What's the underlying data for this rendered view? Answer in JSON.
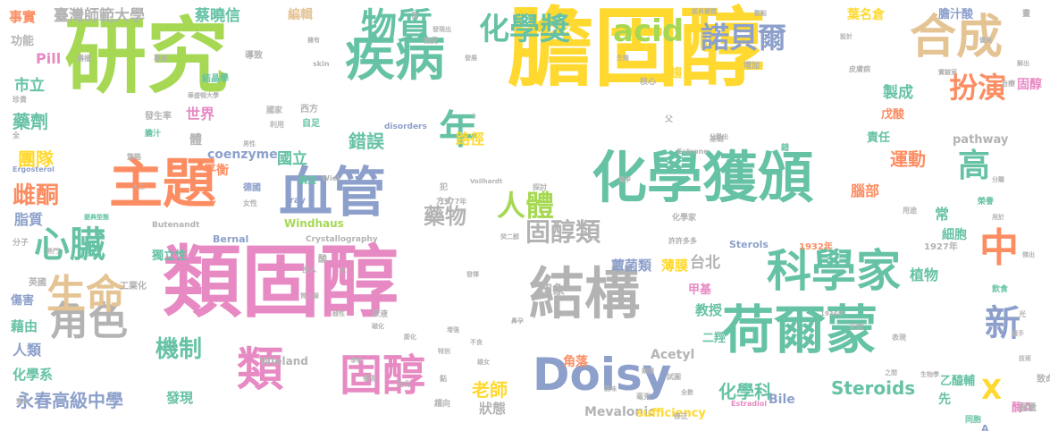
{
  "palette": {
    "green": "#a6d854",
    "gold": "#ffd92f",
    "pink": "#e78ac3",
    "orange": "#fc8d62",
    "teal": "#66c2a5",
    "blue": "#8da0cb",
    "tan": "#e5c494",
    "gray": "#b3b3b3"
  },
  "words": [
    {
      "text": "膽固醇",
      "size": 96,
      "color": "gold"
    },
    {
      "text": "研究",
      "size": 92,
      "color": "green"
    },
    {
      "text": "類固醇",
      "size": 88,
      "color": "pink"
    },
    {
      "text": "化學獲頒",
      "size": 62,
      "color": "teal"
    },
    {
      "text": "主題",
      "size": 60,
      "color": "orange"
    },
    {
      "text": "血管",
      "size": 60,
      "color": "blue"
    },
    {
      "text": "疾病",
      "size": 56,
      "color": "teal"
    },
    {
      "text": "結構",
      "size": 62,
      "color": "gray"
    },
    {
      "text": "荷爾蒙",
      "size": 58,
      "color": "teal"
    },
    {
      "text": "科學家",
      "size": 50,
      "color": "teal"
    },
    {
      "text": "Doisy",
      "size": 50,
      "color": "blue"
    },
    {
      "text": "類",
      "size": 52,
      "color": "pink"
    },
    {
      "text": "固醇",
      "size": 48,
      "color": "pink"
    },
    {
      "text": "合成",
      "size": 52,
      "color": "tan"
    },
    {
      "text": "年",
      "size": 44,
      "color": "teal"
    },
    {
      "text": "角色",
      "size": 44,
      "color": "gray"
    },
    {
      "text": "生命",
      "size": 44,
      "color": "tan"
    },
    {
      "text": "心臟",
      "size": 40,
      "color": "teal"
    },
    {
      "text": "物質",
      "size": 40,
      "color": "teal"
    },
    {
      "text": "化學獎",
      "size": 34,
      "color": "teal"
    },
    {
      "text": "acid",
      "size": 34,
      "color": "green"
    },
    {
      "text": "諾貝爾",
      "size": 32,
      "color": "blue"
    },
    {
      "text": "扮演",
      "size": 32,
      "color": "orange"
    },
    {
      "text": "高",
      "size": 36,
      "color": "teal"
    },
    {
      "text": "中",
      "size": 44,
      "color": "orange"
    },
    {
      "text": "新",
      "size": 40,
      "color": "blue"
    },
    {
      "text": "人體",
      "size": 32,
      "color": "green"
    },
    {
      "text": "固醇類",
      "size": 28,
      "color": "gray"
    },
    {
      "text": "雌酮",
      "size": 26,
      "color": "orange"
    },
    {
      "text": "機制",
      "size": 26,
      "color": "teal"
    },
    {
      "text": "藥物",
      "size": 24,
      "color": "gray"
    },
    {
      "text": "錯誤",
      "size": 20,
      "color": "teal"
    },
    {
      "text": "運動",
      "size": 20,
      "color": "orange"
    },
    {
      "text": "團隊",
      "size": 20,
      "color": "gold"
    },
    {
      "text": "藥劑",
      "size": 20,
      "color": "teal"
    },
    {
      "text": "X",
      "size": 30,
      "color": "gold"
    },
    {
      "text": "Steroids",
      "size": 20,
      "color": "teal"
    },
    {
      "text": "永春高級中學",
      "size": 20,
      "color": "blue"
    },
    {
      "text": "化學科",
      "size": 20,
      "color": "teal"
    },
    {
      "text": "老師",
      "size": 20,
      "color": "gold"
    },
    {
      "text": "臺灣師範大學",
      "size": 17,
      "color": "gray"
    },
    {
      "text": "蔡曉信",
      "size": 17,
      "color": "teal"
    },
    {
      "text": "編輯",
      "size": 14,
      "color": "tan"
    },
    {
      "text": "葉名倉",
      "size": 14,
      "color": "gold"
    },
    {
      "text": "膽汁酸",
      "size": 13,
      "color": "blue"
    },
    {
      "text": "事實",
      "size": 15,
      "color": "orange"
    },
    {
      "text": "功能",
      "size": 13,
      "color": "gray"
    },
    {
      "text": "Pill",
      "size": 16,
      "color": "pink"
    },
    {
      "text": "市立",
      "size": 17,
      "color": "teal"
    },
    {
      "text": "世界",
      "size": 16,
      "color": "pink"
    },
    {
      "text": "體",
      "size": 14,
      "color": "gray"
    },
    {
      "text": "路徑",
      "size": 16,
      "color": "gold"
    },
    {
      "text": "國立",
      "size": 17,
      "color": "teal"
    },
    {
      "text": "平衡",
      "size": 14,
      "color": "orange"
    },
    {
      "text": "coenzyme",
      "size": 14,
      "color": "blue"
    },
    {
      "text": "製成",
      "size": 17,
      "color": "teal"
    },
    {
      "text": "戊酸",
      "size": 13,
      "color": "orange"
    },
    {
      "text": "責任",
      "size": 13,
      "color": "teal"
    },
    {
      "text": "pathway",
      "size": 13,
      "color": "gray"
    },
    {
      "text": "脂質",
      "size": 16,
      "color": "blue"
    },
    {
      "text": "腦部",
      "size": 16,
      "color": "orange"
    },
    {
      "text": "常",
      "size": 16,
      "color": "teal"
    },
    {
      "text": "細胞",
      "size": 14,
      "color": "teal"
    },
    {
      "text": "台北",
      "size": 17,
      "color": "gray"
    },
    {
      "text": "印象",
      "size": 14,
      "color": "gray"
    },
    {
      "text": "蕈菌類",
      "size": 15,
      "color": "blue"
    },
    {
      "text": "薄膜",
      "size": 15,
      "color": "gold"
    },
    {
      "text": "甲基",
      "size": 13,
      "color": "pink"
    },
    {
      "text": "植物",
      "size": 16,
      "color": "teal"
    },
    {
      "text": "教授",
      "size": 15,
      "color": "teal"
    },
    {
      "text": "二羥",
      "size": 13,
      "color": "teal"
    },
    {
      "text": "固醇",
      "size": 14,
      "color": "pink"
    },
    {
      "text": "傷害",
      "size": 13,
      "color": "blue"
    },
    {
      "text": "藉由",
      "size": 15,
      "color": "teal"
    },
    {
      "text": "人類",
      "size": 16,
      "color": "blue"
    },
    {
      "text": "化學系",
      "size": 15,
      "color": "teal"
    },
    {
      "text": "發現",
      "size": 15,
      "color": "teal"
    },
    {
      "text": "狀態",
      "size": 15,
      "color": "gray"
    },
    {
      "text": "Bile",
      "size": 14,
      "color": "blue"
    },
    {
      "text": "Mevalonic",
      "size": 14,
      "color": "gray"
    },
    {
      "text": "sufficiency",
      "size": 13,
      "color": "gold"
    },
    {
      "text": "Acetyl",
      "size": 14,
      "color": "gray"
    },
    {
      "text": "角落",
      "size": 14,
      "color": "orange"
    },
    {
      "text": "先",
      "size": 14,
      "color": "teal"
    },
    {
      "text": "乙醯輔",
      "size": 13,
      "color": "teal"
    },
    {
      "text": "酶A",
      "size": 13,
      "color": "pink"
    },
    {
      "text": "獨立性",
      "size": 13,
      "color": "teal"
    },
    {
      "text": "Windhaus",
      "size": 12,
      "color": "green"
    },
    {
      "text": "Wieland",
      "size": 12,
      "color": "gray"
    },
    {
      "text": "Sterols",
      "size": 11,
      "color": "blue"
    },
    {
      "text": "Bernal",
      "size": 11,
      "color": "blue"
    },
    {
      "text": "Butenandt",
      "size": 9,
      "color": "gray"
    },
    {
      "text": "Crystallography",
      "size": 9,
      "color": "gray"
    },
    {
      "text": "1932年",
      "size": 10,
      "color": "orange"
    },
    {
      "text": "1927年",
      "size": 10,
      "color": "gray"
    },
    {
      "text": "1977年",
      "size": 8,
      "color": "gray"
    },
    {
      "text": "1936年",
      "size": 7,
      "color": "gray"
    },
    {
      "text": "disorders",
      "size": 9,
      "color": "blue"
    },
    {
      "text": "Estrone",
      "size": 8,
      "color": "gray"
    },
    {
      "text": "Estradiol",
      "size": 8,
      "color": "pink"
    },
    {
      "text": "Ergosterol",
      "size": 8,
      "color": "blue"
    },
    {
      "text": "ray",
      "size": 10,
      "color": "blue"
    },
    {
      "text": "skin",
      "size": 8,
      "color": "gray"
    },
    {
      "text": "Vollhardt",
      "size": 7,
      "color": "gray"
    },
    {
      "text": "Wiel",
      "size": 8,
      "color": "gray"
    },
    {
      "text": "A",
      "size": 11,
      "color": "blue"
    },
    {
      "text": "過量",
      "size": 10,
      "color": "gray"
    },
    {
      "text": "致命",
      "size": 10,
      "color": "gray"
    },
    {
      "text": "專家",
      "size": 8,
      "color": "gray"
    },
    {
      "text": "結晶學",
      "size": 10,
      "color": "teal"
    },
    {
      "text": "導致",
      "size": 10,
      "color": "gray"
    },
    {
      "text": "華盛頓大學",
      "size": 7,
      "color": "gray"
    },
    {
      "text": "傳播",
      "size": 8,
      "color": "gray"
    },
    {
      "text": "珍貴",
      "size": 8,
      "color": "gray"
    },
    {
      "text": "發生率",
      "size": 10,
      "color": "gray"
    },
    {
      "text": "膽汁",
      "size": 9,
      "color": "teal"
    },
    {
      "text": "策略",
      "size": 8,
      "color": "gray"
    },
    {
      "text": "男性",
      "size": 7,
      "color": "gray"
    },
    {
      "text": "國家",
      "size": 9,
      "color": "gray"
    },
    {
      "text": "利用",
      "size": 8,
      "color": "gray"
    },
    {
      "text": "西方",
      "size": 10,
      "color": "gray"
    },
    {
      "text": "自足",
      "size": 10,
      "color": "teal"
    },
    {
      "text": "構造",
      "size": 10,
      "color": "teal"
    },
    {
      "text": "德國",
      "size": 10,
      "color": "blue"
    },
    {
      "text": "女性",
      "size": 8,
      "color": "gray"
    },
    {
      "text": "婆典型態",
      "size": 7,
      "color": "teal"
    },
    {
      "text": "人工",
      "size": 7,
      "color": "gray"
    },
    {
      "text": "熱門",
      "size": 7,
      "color": "gray"
    },
    {
      "text": "分子",
      "size": 9,
      "color": "gray"
    },
    {
      "text": "英國",
      "size": 10,
      "color": "gray"
    },
    {
      "text": "工業化",
      "size": 10,
      "color": "gray"
    },
    {
      "text": "方式",
      "size": 9,
      "color": "gray"
    },
    {
      "text": "犯",
      "size": 9,
      "color": "gray"
    },
    {
      "text": "探討",
      "size": 8,
      "color": "gray"
    },
    {
      "text": "酸",
      "size": 10,
      "color": "gray"
    },
    {
      "text": "投入",
      "size": 8,
      "color": "gray"
    },
    {
      "text": "腎上腺",
      "size": 7,
      "color": "gray"
    },
    {
      "text": "尿液",
      "size": 9,
      "color": "gray"
    },
    {
      "text": "雌性",
      "size": 7,
      "color": "gray"
    },
    {
      "text": "磁化",
      "size": 7,
      "color": "gray"
    },
    {
      "text": "膨化",
      "size": 7,
      "color": "gray"
    },
    {
      "text": "特別",
      "size": 7,
      "color": "gray"
    },
    {
      "text": "學者",
      "size": 7,
      "color": "gray"
    },
    {
      "text": "譽為",
      "size": 8,
      "color": "gray"
    },
    {
      "text": "生化",
      "size": 8,
      "color": "gray"
    },
    {
      "text": "趨向",
      "size": 9,
      "color": "gray"
    },
    {
      "text": "黏",
      "size": 8,
      "color": "gray"
    },
    {
      "text": "不良",
      "size": 7,
      "color": "gray"
    },
    {
      "text": "雄女",
      "size": 7,
      "color": "gray"
    },
    {
      "text": "增強",
      "size": 7,
      "color": "gray"
    },
    {
      "text": "癸二醇",
      "size": 7,
      "color": "gray"
    },
    {
      "text": "發揮",
      "size": 7,
      "color": "gray"
    },
    {
      "text": "鼻孕",
      "size": 7,
      "color": "gray"
    },
    {
      "text": "許許多多",
      "size": 8,
      "color": "gray"
    },
    {
      "text": "化學家",
      "size": 9,
      "color": "gray"
    },
    {
      "text": "基礎",
      "size": 8,
      "color": "gray"
    },
    {
      "text": "儀孕",
      "size": 7,
      "color": "gray"
    },
    {
      "text": "試圖",
      "size": 8,
      "color": "gray"
    },
    {
      "text": "修正",
      "size": 8,
      "color": "gray"
    },
    {
      "text": "期間",
      "size": 7,
      "color": "gray"
    },
    {
      "text": "氣味",
      "size": 7,
      "color": "gray"
    },
    {
      "text": "全數",
      "size": 7,
      "color": "gray"
    },
    {
      "text": "毫克",
      "size": 8,
      "color": "gray"
    },
    {
      "text": "天然",
      "size": 8,
      "color": "gray"
    },
    {
      "text": "表現",
      "size": 8,
      "color": "gray"
    },
    {
      "text": "之間",
      "size": 7,
      "color": "gray"
    },
    {
      "text": "生物學",
      "size": 7,
      "color": "gray"
    },
    {
      "text": "同胞",
      "size": 9,
      "color": "teal"
    },
    {
      "text": "用途",
      "size": 8,
      "color": "gray"
    },
    {
      "text": "飲食",
      "size": 9,
      "color": "teal"
    },
    {
      "text": "榮譽",
      "size": 9,
      "color": "teal"
    },
    {
      "text": "用於",
      "size": 7,
      "color": "gray"
    },
    {
      "text": "分離",
      "size": 7,
      "color": "gray"
    },
    {
      "text": "傑出",
      "size": 7,
      "color": "gray"
    },
    {
      "text": "治療",
      "size": 8,
      "color": "gray"
    },
    {
      "text": "實驗室",
      "size": 7,
      "color": "gray"
    },
    {
      "text": "分離出",
      "size": 7,
      "color": "gray"
    },
    {
      "text": "錯",
      "size": 9,
      "color": "teal"
    },
    {
      "text": "父",
      "size": 9,
      "color": "gray"
    },
    {
      "text": "趨",
      "size": 13,
      "color": "gold"
    },
    {
      "text": "核心",
      "size": 9,
      "color": "gray"
    },
    {
      "text": "增加",
      "size": 9,
      "color": "gray"
    },
    {
      "text": "設計",
      "size": 7,
      "color": "gray"
    },
    {
      "text": "皮膚病",
      "size": 8,
      "color": "gray"
    },
    {
      "text": "諾貝爾獎",
      "size": 7,
      "color": "gray"
    },
    {
      "text": "觀點",
      "size": 7,
      "color": "gray"
    },
    {
      "text": "苦",
      "size": 8,
      "color": "gray"
    },
    {
      "text": "飽受",
      "size": 8,
      "color": "gray"
    },
    {
      "text": "發展",
      "size": 7,
      "color": "gray"
    },
    {
      "text": "發現出",
      "size": 7,
      "color": "gray"
    },
    {
      "text": "生殖",
      "size": 7,
      "color": "gray"
    },
    {
      "text": "畫",
      "size": 9,
      "color": "gray"
    },
    {
      "text": "優美",
      "size": 7,
      "color": "gray"
    },
    {
      "text": "解出",
      "size": 7,
      "color": "gray"
    },
    {
      "text": "光",
      "size": 8,
      "color": "gray"
    },
    {
      "text": "技術",
      "size": 7,
      "color": "gray"
    },
    {
      "text": "選手",
      "size": 7,
      "color": "gray"
    },
    {
      "text": "擁有",
      "size": 7,
      "color": "gray"
    },
    {
      "text": "測來",
      "size": 7,
      "color": "gray"
    },
    {
      "text": "化",
      "size": 7,
      "color": "gray"
    },
    {
      "text": "全",
      "size": 8,
      "color": "gray"
    },
    {
      "text": "+",
      "size": 9,
      "color": "gray"
    }
  ]
}
